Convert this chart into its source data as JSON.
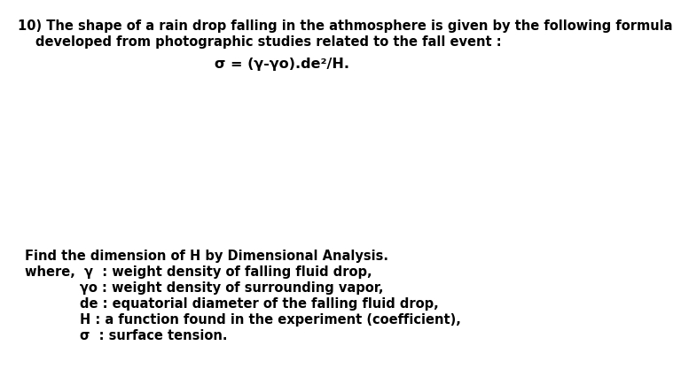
{
  "background_color": "#ffffff",
  "title_line1": "10) The shape of a rain drop falling in the athmosphere is given by the following formula",
  "title_line2": "    developed from photographic studies related to the fall event :",
  "formula": "σ = (γ-γo).de²/H.",
  "find_line": "Find the dimension of H by Dimensional Analysis.",
  "where_line": "where,  γ  : weight density of falling fluid drop,",
  "def_line1": "        γo : weight density of surrounding vapor,",
  "def_line2": "        de : equatorial diameter of the falling fluid drop,",
  "def_line3": "        H : a function found in the experiment (coefficient),",
  "def_line4": "        σ  : surface tension.",
  "font_size_main": 10.5,
  "font_size_formula": 11.5,
  "font_family": "Arial Narrow",
  "font_family_fallback": "DejaVu Sans Condensed"
}
